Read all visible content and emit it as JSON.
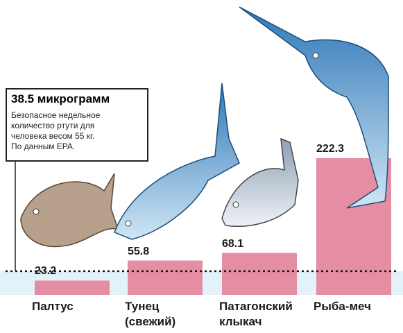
{
  "chart_data": {
    "type": "bar",
    "categories": [
      "Палтус",
      "Тунец\n(свежий)",
      "Патагонский\nклыкач",
      "Рыба-меч"
    ],
    "values": [
      23.2,
      55.8,
      68.1,
      222.3
    ],
    "color": "#e58ea3",
    "reference": {
      "value": 38.5,
      "label": "38.5 микрограмм",
      "note": "Безопасное недельное\nколичество ртути для\nчеловека весом 55 кг.\nПо данным EPA.",
      "band_color": "#e3f1f8"
    }
  }
}
